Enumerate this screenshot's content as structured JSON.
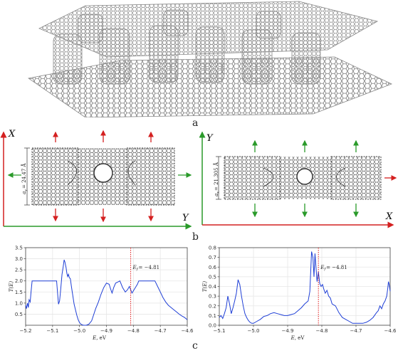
{
  "panel_labels": {
    "a": "a",
    "b": "b",
    "c": "c"
  },
  "structure_left": {
    "axis_vertical": "X",
    "axis_horizontal": "Y",
    "dimension": "a_y = 24.47 Å",
    "dim_symbol": "a",
    "dim_sub": "y",
    "dim_value": "= 24.47 Å"
  },
  "structure_right": {
    "axis_vertical": "Y",
    "axis_horizontal": "X",
    "dimension": "a_x = 21.305 Å",
    "dim_symbol": "a",
    "dim_sub": "x",
    "dim_value": "= 21.305 Å"
  },
  "colors": {
    "red_arrow": "#d42020",
    "green_arrow": "#2a9a2a",
    "curve": "#1f3fd6",
    "fermi": "#e02020",
    "lattice": "#6a6a6a"
  },
  "chart_data": [
    {
      "type": "line",
      "title": "",
      "xlabel_symbol": "E",
      "xlabel_unit": ", eV",
      "ylabel": "T(E)",
      "xlim": [
        -5.2,
        -4.6
      ],
      "ylim": [
        0,
        3.5
      ],
      "xticks": [
        -5.2,
        -5.1,
        -5.0,
        -4.9,
        -4.8,
        -4.7,
        -4.6
      ],
      "xtick_labels": [
        "−5.2",
        "−5.1",
        "−5.0",
        "−4.9",
        "−4.8",
        "−4.7",
        "−4.6"
      ],
      "yticks": [
        0.5,
        1.0,
        1.5,
        2.0,
        2.5,
        3.0,
        3.5
      ],
      "ytick_labels": [
        "0.5",
        "1.0",
        "1.5",
        "2.0",
        "2.5",
        "3.0",
        "3.5"
      ],
      "fermi": {
        "x": -4.81,
        "label_symbol": "E",
        "label_sub": "f",
        "label_value": "= −4.81"
      },
      "grid": true,
      "series": [
        {
          "x": [
            -5.2,
            -5.197,
            -5.193,
            -5.19,
            -5.187,
            -5.183,
            -5.18,
            -5.176,
            -5.1,
            -5.085,
            -5.081,
            -5.078,
            -5.074,
            -5.07,
            -5.065,
            -5.061,
            -5.057,
            -5.054,
            -5.05,
            -5.047,
            -5.044,
            -5.041,
            -5.038,
            -5.034,
            -5.03,
            -5.025,
            -5.02,
            -5.015,
            -5.01,
            -5.005,
            -5.0,
            -4.995,
            -4.99,
            -4.985,
            -4.98,
            -4.975,
            -4.965,
            -4.955,
            -4.948,
            -4.94,
            -4.93,
            -4.92,
            -4.91,
            -4.9,
            -4.89,
            -4.885,
            -4.879,
            -4.873,
            -4.866,
            -4.858,
            -4.85,
            -4.84,
            -4.83,
            -4.822,
            -4.815,
            -4.81,
            -4.805,
            -4.8,
            -4.795,
            -4.785,
            -4.78,
            -4.775,
            -4.77,
            -4.765,
            -4.74,
            -4.72,
            -4.71,
            -4.7,
            -4.69,
            -4.68,
            -4.67,
            -4.66,
            -4.65,
            -4.64,
            -4.63,
            -4.62,
            -4.61,
            -4.6
          ],
          "y": [
            0.9,
            0.75,
            1.0,
            0.8,
            1.15,
            1.05,
            1.5,
            2.0,
            2.0,
            2.0,
            1.4,
            0.95,
            1.1,
            1.6,
            2.3,
            2.6,
            2.95,
            2.85,
            2.6,
            2.35,
            2.2,
            2.3,
            2.15,
            2.1,
            1.75,
            1.35,
            0.95,
            0.7,
            0.45,
            0.25,
            0.12,
            0.05,
            0.02,
            0.0,
            0.0,
            0.0,
            0.05,
            0.2,
            0.45,
            0.75,
            1.05,
            1.4,
            1.7,
            1.9,
            1.85,
            1.65,
            1.45,
            1.7,
            1.9,
            1.95,
            2.0,
            1.7,
            1.5,
            1.6,
            1.75,
            1.6,
            1.45,
            1.55,
            1.65,
            1.85,
            2.0,
            2.0,
            2.0,
            2.0,
            2.0,
            2.0,
            1.75,
            1.5,
            1.25,
            1.05,
            0.9,
            0.8,
            0.7,
            0.6,
            0.5,
            0.42,
            0.35,
            0.25
          ]
        }
      ]
    },
    {
      "type": "line",
      "title": "",
      "xlabel_symbol": "E",
      "xlabel_unit": ", eV",
      "ylabel": "T(E)",
      "xlim": [
        -5.1,
        -4.6
      ],
      "ylim": [
        0,
        0.8
      ],
      "xticks": [
        -5.1,
        -5.0,
        -4.9,
        -4.8,
        -4.7,
        -4.6
      ],
      "xtick_labels": [
        "−5.1",
        "−5.0",
        "−4.9",
        "−4.8",
        "−4.7",
        "−4.6"
      ],
      "yticks": [
        0.0,
        0.1,
        0.2,
        0.3,
        0.4,
        0.5,
        0.6,
        0.7,
        0.8
      ],
      "ytick_labels": [
        "0.0",
        "0.1",
        "0.2",
        "0.3",
        "0.4",
        "0.5",
        "0.6",
        "0.7",
        "0.8"
      ],
      "fermi": {
        "x": -4.81,
        "label_symbol": "E",
        "label_sub": "f",
        "label_value": "= −4.81"
      },
      "grid": true,
      "series": [
        {
          "x": [
            -5.1,
            -5.095,
            -5.09,
            -5.085,
            -5.08,
            -5.075,
            -5.07,
            -5.065,
            -5.06,
            -5.055,
            -5.05,
            -5.045,
            -5.04,
            -5.035,
            -5.03,
            -5.025,
            -5.02,
            -5.015,
            -5.01,
            -5.005,
            -5.0,
            -4.99,
            -4.98,
            -4.97,
            -4.96,
            -4.95,
            -4.94,
            -4.93,
            -4.92,
            -4.91,
            -4.9,
            -4.89,
            -4.88,
            -4.87,
            -4.86,
            -4.85,
            -4.84,
            -4.835,
            -4.83,
            -4.826,
            -4.823,
            -4.82,
            -4.817,
            -4.814,
            -4.81,
            -4.806,
            -4.802,
            -4.798,
            -4.794,
            -4.79,
            -4.785,
            -4.78,
            -4.775,
            -4.77,
            -4.76,
            -4.75,
            -4.74,
            -4.73,
            -4.72,
            -4.71,
            -4.7,
            -4.69,
            -4.68,
            -4.67,
            -4.66,
            -4.65,
            -4.64,
            -4.635,
            -4.63,
            -4.625,
            -4.62,
            -4.615,
            -4.61,
            -4.607,
            -4.605,
            -4.603,
            -4.6
          ],
          "y": [
            0.08,
            0.1,
            0.07,
            0.12,
            0.18,
            0.3,
            0.22,
            0.12,
            0.18,
            0.25,
            0.33,
            0.47,
            0.42,
            0.3,
            0.2,
            0.12,
            0.08,
            0.05,
            0.03,
            0.02,
            0.02,
            0.04,
            0.06,
            0.09,
            0.1,
            0.12,
            0.13,
            0.12,
            0.11,
            0.1,
            0.1,
            0.11,
            0.12,
            0.15,
            0.18,
            0.22,
            0.25,
            0.35,
            0.76,
            0.7,
            0.5,
            0.74,
            0.6,
            0.45,
            0.55,
            0.43,
            0.4,
            0.42,
            0.37,
            0.33,
            0.36,
            0.3,
            0.28,
            0.22,
            0.2,
            0.13,
            0.08,
            0.06,
            0.04,
            0.02,
            0.02,
            0.02,
            0.02,
            0.03,
            0.05,
            0.08,
            0.13,
            0.15,
            0.2,
            0.17,
            0.22,
            0.25,
            0.3,
            0.38,
            0.45,
            0.42,
            0.35
          ]
        }
      ]
    }
  ]
}
